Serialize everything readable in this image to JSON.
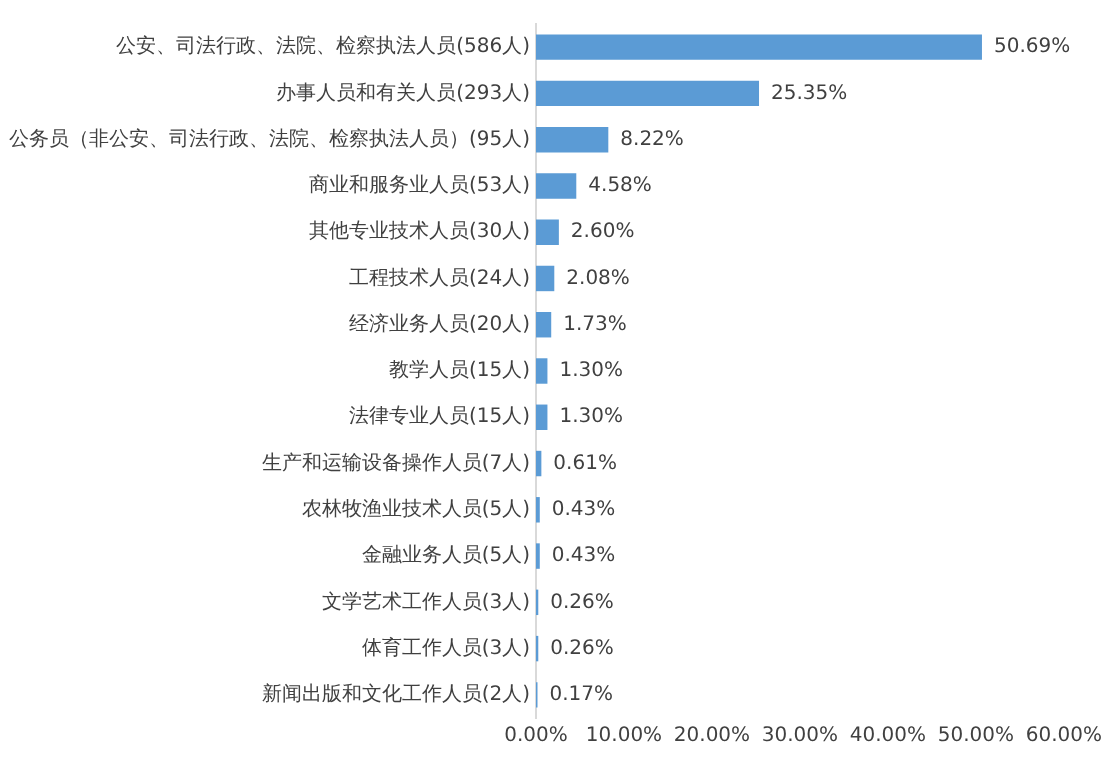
{
  "chart_data": {
    "type": "bar",
    "orientation": "horizontal",
    "categories": [
      "公安、司法行政、法院、检察执法人员(586人)",
      "办事人员和有关人员(293人)",
      "公务员（非公安、司法行政、法院、检察执法人员）(95人)",
      "商业和服务业人员(53人)",
      "其他专业技术人员(30人)",
      "工程技术人员(24人)",
      "经济业务人员(20人)",
      "教学人员(15人)",
      "法律专业人员(15人)",
      "生产和运输设备操作人员(7人)",
      "农林牧渔业技术人员(5人)",
      "金融业务人员(5人)",
      "文学艺术工作人员(3人)",
      "体育工作人员(3人)",
      "新闻出版和文化工作人员(2人)"
    ],
    "values": [
      50.69,
      25.35,
      8.22,
      4.58,
      2.6,
      2.08,
      1.73,
      1.3,
      1.3,
      0.61,
      0.43,
      0.43,
      0.26,
      0.26,
      0.17
    ],
    "value_labels": [
      "50.69%",
      "25.35%",
      "8.22%",
      "4.58%",
      "2.60%",
      "2.08%",
      "1.73%",
      "1.30%",
      "1.30%",
      "0.61%",
      "0.43%",
      "0.43%",
      "0.26%",
      "0.26%",
      "0.17%"
    ],
    "color": "#5b9bd5",
    "xlim": [
      0,
      60
    ],
    "xticks": [
      {
        "value": 0,
        "label": "0.00%"
      },
      {
        "value": 10,
        "label": "10.00%"
      },
      {
        "value": 20,
        "label": "20.00%"
      },
      {
        "value": 30,
        "label": "30.00%"
      },
      {
        "value": 40,
        "label": "40.00%"
      },
      {
        "value": 50,
        "label": "50.00%"
      },
      {
        "value": 60,
        "label": "60.00%"
      }
    ],
    "grid": false,
    "legend": false
  }
}
